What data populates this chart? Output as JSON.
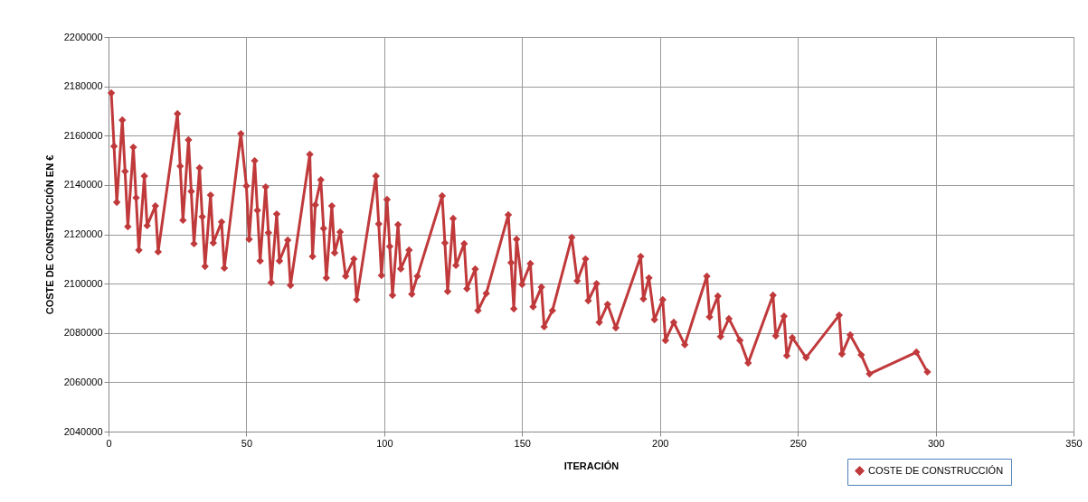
{
  "chart_data": {
    "type": "line",
    "xlabel": "ITERACIÓN",
    "ylabel": "COSTE DE CONSTRUCCIÓN  EN €",
    "x": [
      1,
      2,
      3,
      5,
      6,
      7,
      9,
      10,
      11,
      13,
      14,
      17,
      18,
      25,
      26,
      27,
      29,
      30,
      31,
      33,
      34,
      35,
      37,
      38,
      41,
      42,
      48,
      50,
      51,
      53,
      54,
      55,
      57,
      58,
      59,
      61,
      62,
      65,
      66,
      73,
      74,
      75,
      77,
      78,
      79,
      81,
      82,
      84,
      86,
      89,
      90,
      97,
      98,
      99,
      101,
      102,
      103,
      105,
      106,
      109,
      110,
      112,
      121,
      122,
      123,
      125,
      126,
      129,
      130,
      133,
      134,
      137,
      145,
      146,
      147,
      148,
      150,
      153,
      154,
      157,
      158,
      161,
      168,
      170,
      173,
      174,
      177,
      178,
      181,
      184,
      193,
      194,
      196,
      198,
      201,
      202,
      205,
      209,
      217,
      218,
      221,
      222,
      225,
      229,
      232,
      241,
      242,
      245,
      246,
      248,
      253,
      265,
      266,
      269,
      273,
      276,
      293,
      297
    ],
    "series": [
      {
        "name": "COSTE DE CONSTRUCCIÓN",
        "color": "#c0393b",
        "values": [
          2177300,
          2155700,
          2133000,
          2166300,
          2145500,
          2123100,
          2155300,
          2134800,
          2113600,
          2143600,
          2123500,
          2131500,
          2112900,
          2168900,
          2147600,
          2125700,
          2158300,
          2137400,
          2116200,
          2146900,
          2127100,
          2107000,
          2135900,
          2116500,
          2125000,
          2106300,
          2160800,
          2139600,
          2118000,
          2149800,
          2129700,
          2109200,
          2139200,
          2120600,
          2100400,
          2128200,
          2109200,
          2117600,
          2099300,
          2152400,
          2111000,
          2131900,
          2142100,
          2122400,
          2102300,
          2131500,
          2112500,
          2120900,
          2103000,
          2110000,
          2093500,
          2143600,
          2124200,
          2103300,
          2134100,
          2115100,
          2095300,
          2123900,
          2106000,
          2113600,
          2095700,
          2103000,
          2135600,
          2116500,
          2096800,
          2126400,
          2107400,
          2116200,
          2097900,
          2105900,
          2089100,
          2096000,
          2127900,
          2108500,
          2089800,
          2118000,
          2099700,
          2108100,
          2090600,
          2098600,
          2082500,
          2089100,
          2118700,
          2101100,
          2110000,
          2093100,
          2100000,
          2084300,
          2091600,
          2082100,
          2111000,
          2093800,
          2102300,
          2085400,
          2093500,
          2077000,
          2084300,
          2075200,
          2103000,
          2086500,
          2094900,
          2078500,
          2085800,
          2077000,
          2067800,
          2095300,
          2078800,
          2086800,
          2070800,
          2078100,
          2070000,
          2087200,
          2071500,
          2079200,
          2071100,
          2063400,
          2072200,
          2064200
        ]
      }
    ],
    "xlim": [
      0,
      350
    ],
    "xticks": [
      0,
      50,
      100,
      150,
      200,
      250,
      300,
      350
    ],
    "ylim": [
      2040000,
      2200000
    ],
    "yticks": [
      2040000,
      2060000,
      2080000,
      2100000,
      2120000,
      2140000,
      2160000,
      2180000,
      2200000
    ],
    "grid": true,
    "legend": "bottom right",
    "marker": "diamond",
    "line_style": "solid"
  }
}
